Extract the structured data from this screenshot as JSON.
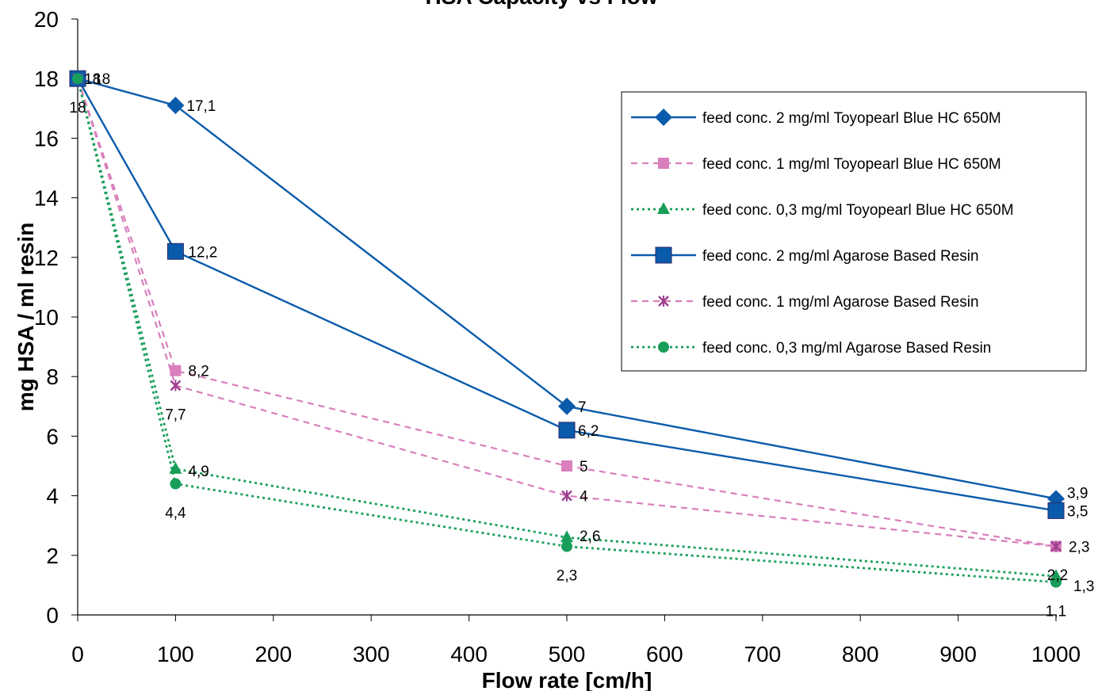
{
  "chart_data": {
    "type": "line",
    "title": "HSA Capacity vs Flow",
    "xlabel": "Flow rate [cm/h]",
    "ylabel": "mg HSA / ml resin",
    "xlim": [
      0,
      1000
    ],
    "ylim": [
      0,
      20
    ],
    "x_ticks": [
      0,
      100,
      200,
      300,
      400,
      500,
      600,
      700,
      800,
      900,
      1000
    ],
    "y_ticks": [
      0,
      2,
      4,
      6,
      8,
      10,
      12,
      14,
      16,
      18,
      20
    ],
    "grid": false,
    "legend_position": "right",
    "series": [
      {
        "name": "feed conc. 2 mg/ml Toyopearl Blue HC 650M",
        "color": "#0a5bab",
        "dash": "solid",
        "marker": "diamond",
        "x": [
          0,
          100,
          500,
          1000
        ],
        "y": [
          18,
          17.1,
          7,
          3.9
        ],
        "labels": [
          "18",
          "17,1",
          "7",
          "3,9"
        ]
      },
      {
        "name": "feed conc. 1 mg/ml Toyopearl Blue HC 650M",
        "color": "#d97fbc",
        "dash": "dashed",
        "marker": "square",
        "x": [
          0,
          100,
          500,
          1000
        ],
        "y": [
          18,
          8.2,
          5,
          2.3
        ],
        "labels": [
          "",
          "8,2",
          "5",
          ""
        ]
      },
      {
        "name": "feed conc. 0,3 mg/ml Toyopearl Blue HC 650M",
        "color": "#189e5a",
        "dash": "dotted",
        "marker": "triangle",
        "x": [
          0,
          100,
          500,
          1000
        ],
        "y": [
          18,
          4.9,
          2.6,
          1.3
        ],
        "labels": [
          "",
          "4,9",
          "2,6",
          "1,3"
        ]
      },
      {
        "name": "feed conc. 2 mg/ml Agarose Based Resin",
        "color": "#0a5bab",
        "dash": "solid",
        "marker": "bigsquare",
        "x": [
          0,
          100,
          500,
          1000
        ],
        "y": [
          18,
          12.2,
          6.2,
          3.5
        ],
        "labels": [
          "18",
          "12,2",
          "6,2",
          "3,5"
        ]
      },
      {
        "name": "feed conc. 1 mg/ml Agarose Based Resin",
        "color": "#d97fbc",
        "dash": "dashed",
        "marker": "star",
        "x": [
          0,
          100,
          500,
          1000
        ],
        "y": [
          18,
          7.7,
          4,
          2.3
        ],
        "labels": [
          "",
          "7,7",
          "4",
          "2,3"
        ]
      },
      {
        "name": "feed conc. 0,3 mg/ml Agarose Based Resin",
        "color": "#189e5a",
        "dash": "dotted",
        "marker": "circle",
        "x": [
          0,
          100,
          500,
          1000
        ],
        "y": [
          18,
          4.4,
          2.3,
          1.1
        ],
        "labels": [
          "18",
          "4,4",
          "2,3",
          "1,1"
        ]
      },
      {
        "name": "",
        "color": "#189e5a",
        "dash": "none",
        "marker": "none",
        "x": [
          1000
        ],
        "y": [
          1.2
        ],
        "labels": [
          "2,2"
        ]
      }
    ]
  }
}
